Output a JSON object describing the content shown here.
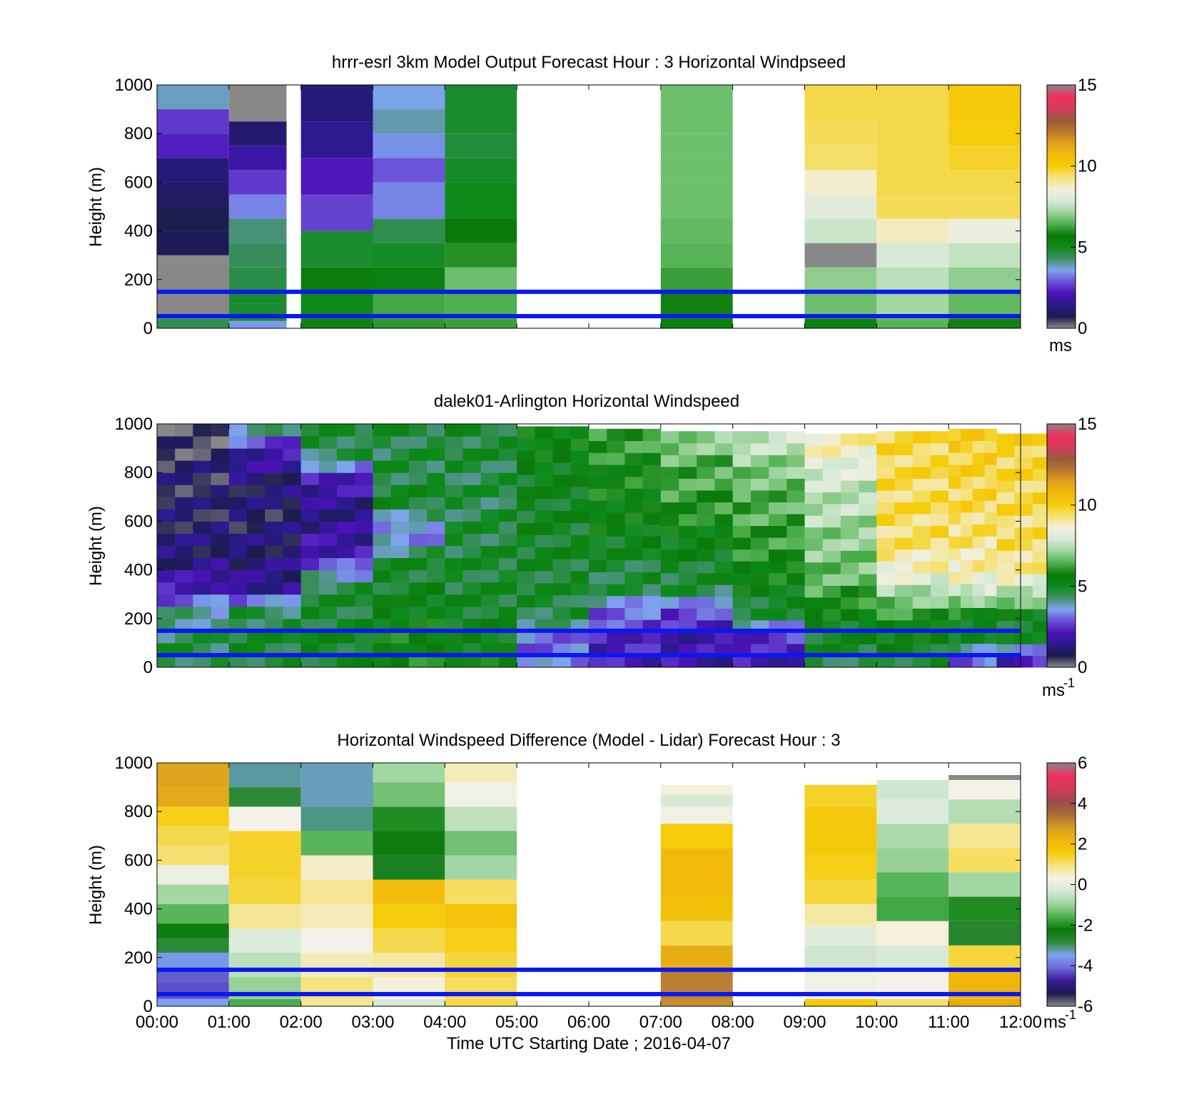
{
  "colors": {
    "speed_colormap": [
      "#888888",
      "#1b1b4e",
      "#2a1a8c",
      "#4a12b8",
      "#6a4fd6",
      "#7ea4ee",
      "#3f8f66",
      "#0d8a1a",
      "#0a7a0a",
      "#4fb04f",
      "#9ed49e",
      "#d6ead6",
      "#f2efe0",
      "#f5e27a",
      "#f5cc0a",
      "#f2b90a",
      "#e0a020",
      "#b8782a",
      "#9a5a40",
      "#d33a5a",
      "#f0305e",
      "#888888"
    ],
    "diff_colormap": [
      "#888888",
      "#1b1b4e",
      "#3a1a9a",
      "#6a6ad8",
      "#7ea4ee",
      "#2e8a3a",
      "#0a7a0a",
      "#4fb04f",
      "#9ed49e",
      "#d6ead6",
      "#f5f2e8",
      "#f5e27a",
      "#f5cc0a",
      "#f0b60a",
      "#d39a28",
      "#a86a38",
      "#9a4a4a",
      "#d33a5a",
      "#f0305e",
      "#888888"
    ],
    "reference_lines": "#0a18f0"
  },
  "x_ticks": [
    "00:00",
    "01:00",
    "02:00",
    "03:00",
    "04:00",
    "05:00",
    "06:00",
    "07:00",
    "08:00",
    "09:00",
    "10:00",
    "11:00",
    "12:00"
  ],
  "x_label": "Time UTC  Starting Date ; 2016-04-07",
  "y_label": "Height (m)",
  "y_ticks": [
    "0",
    "200",
    "400",
    "600",
    "800",
    "1000"
  ],
  "chart_data": [
    {
      "type": "heatmap",
      "title": "hrrr-esrl 3km Model Output   Forecast Hour : 3 Horizontal Windpseed",
      "ylabel": "Height (m)",
      "xlim": [
        "00:00",
        "12:00"
      ],
      "ylim": [
        0,
        1000
      ],
      "colorbar": {
        "range": [
          0,
          15
        ],
        "ticks": [
          "0",
          "5",
          "10",
          "15"
        ],
        "unit": "ms"
      },
      "reference_lines_m": [
        150,
        50
      ],
      "columns": [
        {
          "start": "00:00",
          "end": "01:00",
          "levels_m": [
            40,
            150,
            300,
            400,
            500,
            600,
            700,
            800,
            900,
            1000
          ],
          "speed_ms": [
            4.5,
            0,
            0,
            0.8,
            0.7,
            1.0,
            1.2,
            2.3,
            2.6,
            3.8
          ]
        },
        {
          "start": "01:00",
          "end": "01:48",
          "levels_m": [
            30,
            100,
            150,
            250,
            350,
            450,
            550,
            650,
            750,
            850,
            1000
          ],
          "speed_ms": [
            3.5,
            4.8,
            4.8,
            4.6,
            4.4,
            4.2,
            3.3,
            2.6,
            1.8,
            1.1,
            0
          ]
        },
        {
          "start": "02:00",
          "end": "03:00",
          "levels_m": [
            40,
            150,
            250,
            400,
            550,
            700,
            850,
            1000
          ],
          "speed_ms": [
            5.8,
            5.0,
            5.6,
            4.8,
            2.7,
            2.2,
            1.5,
            1.2
          ]
        },
        {
          "start": "03:00",
          "end": "04:00",
          "levels_m": [
            40,
            150,
            250,
            350,
            450,
            600,
            700,
            800,
            900,
            1000
          ],
          "speed_ms": [
            6.1,
            6.3,
            5.5,
            4.9,
            4.5,
            3.3,
            2.9,
            3.4,
            3.9,
            3.6
          ]
        },
        {
          "start": "04:00",
          "end": "05:00",
          "levels_m": [
            40,
            150,
            250,
            350,
            450,
            600,
            700,
            800,
            1000
          ],
          "speed_ms": [
            6.2,
            6.4,
            6.7,
            6.0,
            5.7,
            5.0,
            4.9,
            4.7,
            4.8
          ]
        },
        {
          "start": "07:00",
          "end": "08:00",
          "levels_m": [
            40,
            150,
            250,
            350,
            450,
            600,
            700,
            800,
            1000
          ],
          "speed_ms": [
            5.5,
            5.8,
            6.2,
            6.5,
            6.6,
            6.7,
            6.7,
            6.7,
            6.7
          ]
        },
        {
          "start": "09:00",
          "end": "10:00",
          "levels_m": [
            40,
            150,
            250,
            350,
            450,
            550,
            650,
            750,
            850,
            1000
          ],
          "speed_ms": [
            5.4,
            6.7,
            7.0,
            0,
            7.7,
            8.2,
            8.7,
            9.4,
            9.5,
            9.6
          ]
        },
        {
          "start": "10:00",
          "end": "11:00",
          "levels_m": [
            40,
            150,
            250,
            350,
            450,
            550,
            650,
            750,
            850,
            1000
          ],
          "speed_ms": [
            6.5,
            7.2,
            7.5,
            7.9,
            8.8,
            9.5,
            9.6,
            9.6,
            9.6,
            9.6
          ]
        },
        {
          "start": "11:00",
          "end": "12:00",
          "levels_m": [
            40,
            150,
            250,
            350,
            450,
            550,
            650,
            750,
            850,
            1000
          ],
          "speed_ms": [
            5.8,
            6.6,
            7.0,
            7.6,
            8.4,
            9.5,
            9.6,
            9.8,
            10.0,
            10.1
          ]
        }
      ]
    },
    {
      "type": "heatmap",
      "title": "dalek01-Arlington  Horizontal Windspeed",
      "ylabel": "Height (m)",
      "xlim": [
        "00:00",
        "12:00"
      ],
      "ylim": [
        0,
        1000
      ],
      "colorbar": {
        "range": [
          0,
          15
        ],
        "ticks": [
          "0",
          "5",
          "10",
          "15"
        ],
        "unit": "ms-1"
      },
      "reference_lines_m": [
        150,
        50
      ],
      "profiles": [
        {
          "time": "00:00",
          "top_m": 1000,
          "speed_ms": [
            4.7,
            4.5,
            4.0,
            2.0,
            1.2,
            1.0,
            0.8,
            0.8,
            0.6,
            0
          ]
        },
        {
          "time": "01:00",
          "top_m": 1000,
          "speed_ms": [
            4.8,
            4.8,
            4.6,
            1.5,
            1.2,
            1.0,
            0.9,
            1.2,
            2.0,
            4.5
          ]
        },
        {
          "time": "02:00",
          "top_m": 1000,
          "speed_ms": [
            5.0,
            5.0,
            4.8,
            4.7,
            2.3,
            1.6,
            1.4,
            2.3,
            4.8,
            4.6
          ]
        },
        {
          "time": "03:00",
          "top_m": 1000,
          "speed_ms": [
            5.7,
            5.6,
            5.4,
            5.0,
            4.8,
            3.0,
            4.9,
            4.7,
            4.6,
            4.8
          ]
        },
        {
          "time": "04:00",
          "top_m": 1000,
          "speed_ms": [
            5.5,
            5.3,
            5.0,
            4.8,
            4.8,
            4.7,
            4.6,
            4.6,
            4.7,
            4.9
          ]
        },
        {
          "time": "05:00",
          "top_m": 990,
          "speed_ms": [
            3.3,
            3.0,
            4.7,
            4.8,
            4.9,
            5.0,
            5.1,
            5.2,
            5.4,
            5.5
          ]
        },
        {
          "time": "06:00",
          "top_m": 980,
          "speed_ms": [
            2.0,
            2.3,
            3.0,
            4.6,
            4.8,
            5.3,
            5.5,
            5.7,
            6.0,
            6.4
          ]
        },
        {
          "time": "07:00",
          "top_m": 970,
          "speed_ms": [
            1.8,
            1.9,
            2.6,
            4.7,
            5.0,
            5.4,
            6.0,
            6.3,
            6.5,
            7.3
          ]
        },
        {
          "time": "08:00",
          "top_m": 970,
          "speed_ms": [
            2.0,
            2.2,
            4.6,
            5.4,
            5.8,
            6.2,
            6.4,
            6.6,
            7.2,
            7.8
          ]
        },
        {
          "time": "09:00",
          "top_m": 960,
          "speed_ms": [
            4.6,
            5.0,
            5.4,
            6.4,
            6.8,
            7.0,
            7.4,
            7.6,
            8.4,
            9.0
          ]
        },
        {
          "time": "10:00",
          "top_m": 970,
          "speed_ms": [
            4.8,
            5.2,
            6.0,
            7.6,
            9.0,
            9.4,
            9.5,
            9.5,
            9.6,
            9.6
          ]
        },
        {
          "time": "11:00",
          "top_m": 980,
          "speed_ms": [
            2.5,
            4.8,
            5.6,
            8.2,
            9.0,
            9.3,
            9.5,
            9.7,
            9.8,
            9.9
          ]
        },
        {
          "time": "11:40",
          "top_m": 960,
          "speed_ms": [
            1.6,
            4.6,
            5.3,
            7.8,
            9.3,
            9.4,
            9.5,
            9.6,
            9.7,
            9.8
          ]
        }
      ]
    },
    {
      "type": "heatmap",
      "title": "Horizontal Windspeed Difference (Model - Lidar) Forecast Hour : 3",
      "ylabel": "Height (m)",
      "xlabel": "Time UTC  Starting Date ; 2016-04-07",
      "xlim": [
        "00:00",
        "12:00"
      ],
      "ylim": [
        0,
        1000
      ],
      "colorbar": {
        "range": [
          -6,
          6
        ],
        "ticks": [
          "-6",
          "-4",
          "-2",
          "0",
          "2",
          "4",
          "6"
        ],
        "unit": "ms-1"
      },
      "reference_lines_m": [
        150,
        50
      ],
      "columns": [
        {
          "start": "00:00",
          "end": "01:00",
          "levels_m": [
            30,
            100,
            150,
            220,
            280,
            340,
            420,
            500,
            580,
            660,
            740,
            820,
            900,
            1000
          ],
          "diff_ms": [
            -3.5,
            -4.3,
            -4.2,
            -3.6,
            -2.8,
            -2.3,
            -1.5,
            -0.9,
            0.1,
            1.0,
            1.2,
            1.5,
            2.5,
            2.6
          ]
        },
        {
          "start": "01:00",
          "end": "02:00",
          "levels_m": [
            30,
            120,
            220,
            320,
            420,
            520,
            620,
            720,
            820,
            900,
            1000
          ],
          "diff_ms": [
            -1.6,
            -1.0,
            -0.6,
            -0.2,
            0.8,
            1.3,
            1.4,
            1.4,
            0.3,
            -2.8,
            -3.2
          ]
        },
        {
          "start": "02:00",
          "end": "03:00",
          "levels_m": [
            30,
            120,
            220,
            320,
            420,
            520,
            620,
            720,
            820,
            1000
          ],
          "diff_ms": [
            0.8,
            0.9,
            0.6,
            0.3,
            0.6,
            0.8,
            0.5,
            -1.5,
            -3.1,
            -3.3
          ]
        },
        {
          "start": "03:00",
          "end": "04:00",
          "levels_m": [
            30,
            120,
            220,
            320,
            420,
            520,
            620,
            720,
            820,
            920,
            1000
          ],
          "diff_ms": [
            -0.3,
            0.4,
            0.7,
            1.2,
            1.6,
            2.0,
            -2.5,
            -2.3,
            -2.0,
            -1.3,
            -0.9
          ]
        },
        {
          "start": "04:00",
          "end": "05:00",
          "levels_m": [
            30,
            120,
            220,
            320,
            420,
            520,
            620,
            720,
            820,
            920,
            1000
          ],
          "diff_ms": [
            1.2,
            1.1,
            1.3,
            1.5,
            1.8,
            1.1,
            -0.9,
            -1.3,
            -0.6,
            0.2,
            0.6
          ]
        },
        {
          "start": "07:00",
          "end": "08:00",
          "levels_m": [
            30,
            150,
            250,
            350,
            450,
            550,
            650,
            750,
            820,
            870,
            910
          ],
          "diff_ms": [
            3.0,
            3.2,
            2.4,
            1.2,
            1.9,
            2.1,
            2.1,
            1.6,
            0.2,
            -0.3,
            0.4
          ]
        },
        {
          "start": "09:00",
          "end": "10:00",
          "levels_m": [
            30,
            150,
            250,
            330,
            420,
            520,
            620,
            720,
            820,
            910
          ],
          "diff_ms": [
            1.6,
            0.2,
            -0.4,
            -0.1,
            0.7,
            1.3,
            1.5,
            1.7,
            1.7,
            1.4
          ]
        },
        {
          "start": "10:00",
          "end": "11:00",
          "levels_m": [
            30,
            150,
            250,
            350,
            450,
            550,
            650,
            750,
            850,
            930
          ],
          "diff_ms": [
            1.0,
            0.3,
            -0.3,
            0.4,
            -1.7,
            -1.5,
            -1.0,
            -0.8,
            -0.2,
            -0.4
          ]
        },
        {
          "start": "11:00",
          "end": "12:00",
          "levels_m": [
            30,
            150,
            250,
            350,
            450,
            550,
            650,
            750,
            850,
            930,
            950
          ],
          "diff_ms": [
            2.4,
            2.2,
            1.3,
            -2.7,
            -2.0,
            -0.9,
            1.1,
            0.8,
            -0.7,
            0.3,
            -6.0
          ]
        }
      ]
    }
  ]
}
